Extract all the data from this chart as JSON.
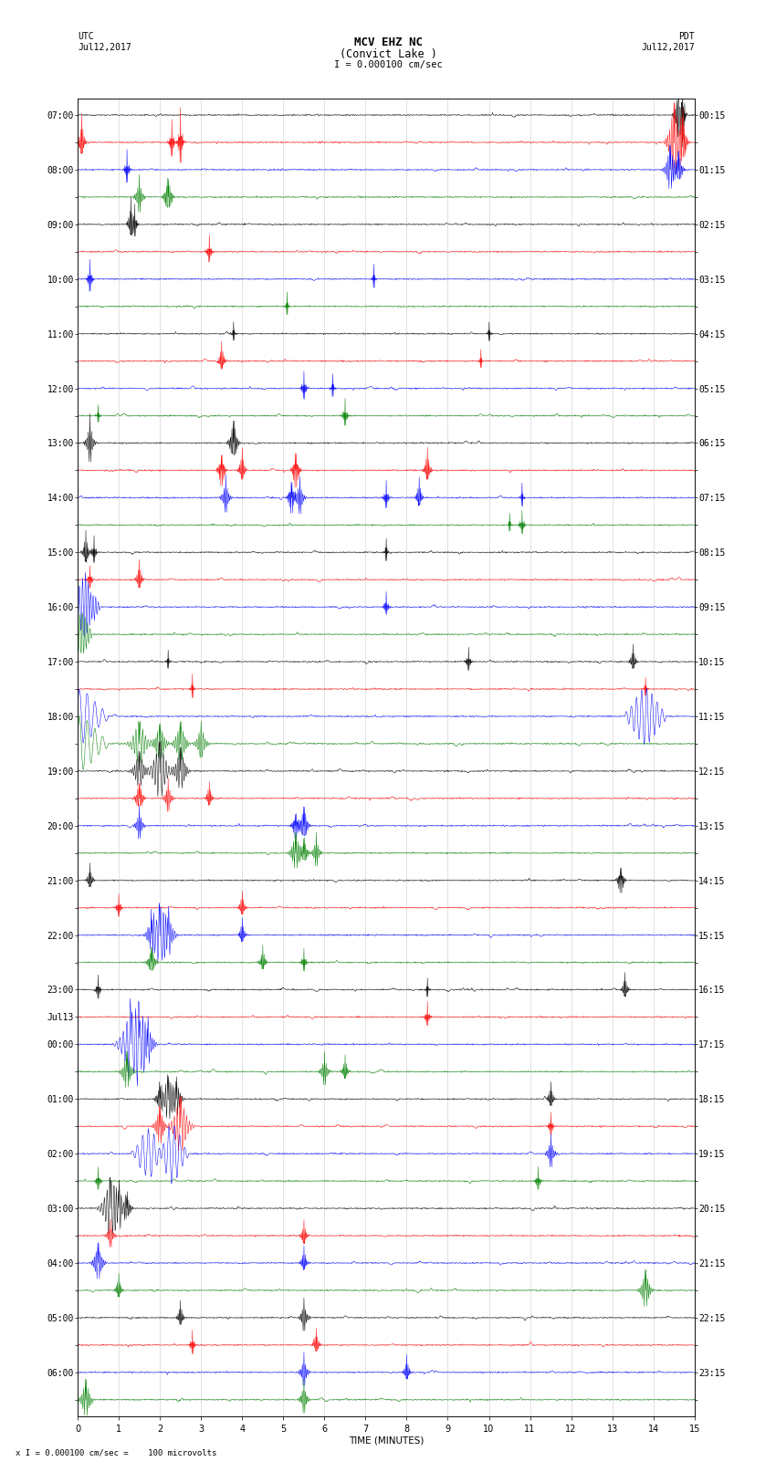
{
  "title_line1": "MCV EHZ NC",
  "title_line2": "(Convict Lake )",
  "scale_label": "I = 0.000100 cm/sec",
  "footer_label": "x I = 0.000100 cm/sec =    100 microvolts",
  "utc_label": "UTC",
  "utc_date": "Jul12,2017",
  "pdt_label": "PDT",
  "pdt_date": "Jul12,2017",
  "xlabel": "TIME (MINUTES)",
  "bg_color": "#ffffff",
  "trace_colors": [
    "black",
    "red",
    "blue",
    "green"
  ],
  "n_traces": 48,
  "xlim": [
    0,
    15
  ],
  "xticks": [
    0,
    1,
    2,
    3,
    4,
    5,
    6,
    7,
    8,
    9,
    10,
    11,
    12,
    13,
    14,
    15
  ],
  "seed": 12345,
  "title_fontsize": 9,
  "label_fontsize": 7.5,
  "tick_fontsize": 7,
  "figsize": [
    8.5,
    16.13
  ],
  "dpi": 100,
  "left_labels": [
    "07:00",
    "",
    "08:00",
    "",
    "09:00",
    "",
    "10:00",
    "",
    "11:00",
    "",
    "12:00",
    "",
    "13:00",
    "",
    "14:00",
    "",
    "15:00",
    "",
    "16:00",
    "",
    "17:00",
    "",
    "18:00",
    "",
    "19:00",
    "",
    "20:00",
    "",
    "21:00",
    "",
    "22:00",
    "",
    "23:00",
    "Jul13",
    "00:00",
    "",
    "01:00",
    "",
    "02:00",
    "",
    "03:00",
    "",
    "04:00",
    "",
    "05:00",
    "",
    "06:00",
    ""
  ],
  "right_labels": [
    "00:15",
    "",
    "01:15",
    "",
    "02:15",
    "",
    "03:15",
    "",
    "04:15",
    "",
    "05:15",
    "",
    "06:15",
    "",
    "07:15",
    "",
    "08:15",
    "",
    "09:15",
    "",
    "10:15",
    "",
    "11:15",
    "",
    "12:15",
    "",
    "13:15",
    "",
    "14:15",
    "",
    "15:15",
    "",
    "16:15",
    "",
    "17:15",
    "",
    "18:15",
    "",
    "19:15",
    "",
    "20:15",
    "",
    "21:15",
    "",
    "22:15",
    "",
    "23:15",
    ""
  ]
}
